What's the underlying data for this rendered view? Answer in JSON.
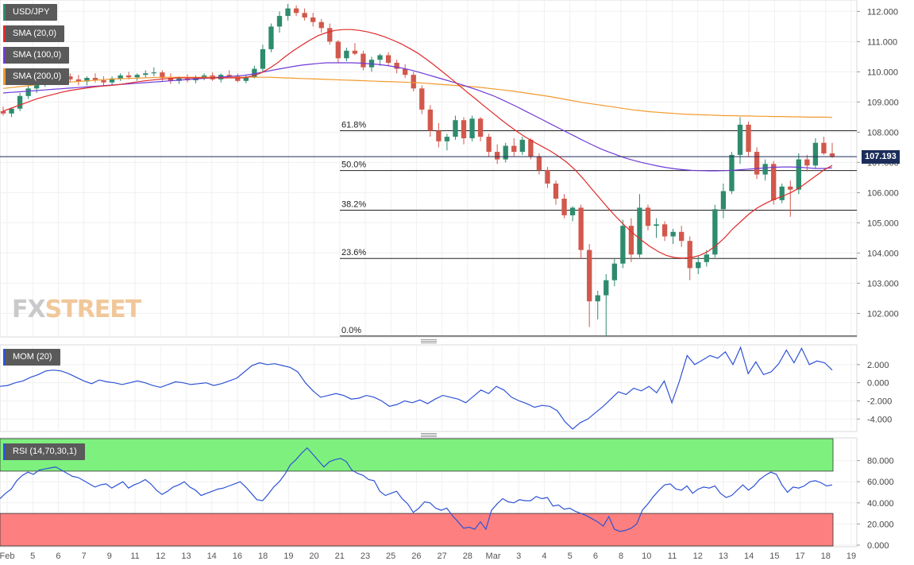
{
  "chart_data": [
    {
      "type": "candlestick",
      "symbol": "USD/JPY",
      "ylim": [
        101.3,
        112.3
      ],
      "y_ticks": [
        "112.000",
        "111.000",
        "110.000",
        "109.000",
        "108.000",
        "107.000",
        "106.000",
        "105.000",
        "104.000",
        "103.000",
        "102.000"
      ],
      "x_labels": [
        "Feb",
        "5",
        "6",
        "7",
        "9",
        "11",
        "12",
        "13",
        "14",
        "16",
        "18",
        "19",
        "20",
        "21",
        "23",
        "25",
        "26",
        "27",
        "28",
        "Mar",
        "3",
        "4",
        "5",
        "6",
        "8",
        "10",
        "11",
        "12",
        "13",
        "14",
        "15",
        "17",
        "18",
        "19"
      ],
      "last_price": "107.193",
      "legend": [
        "USD/JPY",
        "SMA (20,0)",
        "SMA (100,0)",
        "SMA (200,0)"
      ],
      "colors": {
        "up": "#2e8b6e",
        "down": "#d2584c",
        "sma20": "#e02a2a",
        "sma100": "#6f3ad8",
        "sma200": "#f29a2e",
        "price_line": "#1c2d5a"
      },
      "fibonacci": [
        {
          "label": "61.8%",
          "value": 108.05
        },
        {
          "label": "50.0%",
          "value": 106.73
        },
        {
          "label": "38.2%",
          "value": 105.42
        },
        {
          "label": "23.6%",
          "value": 103.82
        },
        {
          "label": "0.0%",
          "value": 101.25
        }
      ],
      "candles": [
        [
          108.7,
          108.85,
          108.55,
          108.62
        ],
        [
          108.62,
          108.8,
          108.5,
          108.78
        ],
        [
          108.78,
          109.3,
          108.7,
          109.2
        ],
        [
          109.2,
          109.6,
          109.1,
          109.45
        ],
        [
          109.45,
          109.8,
          109.3,
          109.65
        ],
        [
          109.65,
          109.95,
          109.5,
          109.8
        ],
        [
          109.8,
          110.05,
          109.7,
          109.92
        ],
        [
          109.92,
          110.05,
          109.75,
          109.85
        ],
        [
          109.85,
          109.95,
          109.65,
          109.75
        ],
        [
          109.75,
          109.9,
          109.55,
          109.68
        ],
        [
          109.68,
          109.85,
          109.55,
          109.8
        ],
        [
          109.8,
          109.95,
          109.65,
          109.72
        ],
        [
          109.72,
          109.85,
          109.55,
          109.65
        ],
        [
          109.65,
          109.85,
          109.55,
          109.78
        ],
        [
          109.78,
          109.95,
          109.7,
          109.88
        ],
        [
          109.88,
          110.0,
          109.75,
          109.82
        ],
        [
          109.82,
          109.95,
          109.7,
          109.9
        ],
        [
          109.9,
          110.05,
          109.8,
          109.95
        ],
        [
          109.95,
          110.15,
          109.85,
          109.98
        ],
        [
          109.98,
          110.05,
          109.7,
          109.8
        ],
        [
          109.8,
          109.95,
          109.6,
          109.7
        ],
        [
          109.7,
          109.85,
          109.6,
          109.78
        ],
        [
          109.78,
          109.92,
          109.65,
          109.72
        ],
        [
          109.72,
          109.88,
          109.62,
          109.8
        ],
        [
          109.8,
          109.95,
          109.72,
          109.88
        ],
        [
          109.88,
          109.98,
          109.7,
          109.75
        ],
        [
          109.75,
          109.95,
          109.65,
          109.9
        ],
        [
          109.9,
          110.05,
          109.8,
          109.85
        ],
        [
          109.85,
          109.95,
          109.65,
          109.7
        ],
        [
          109.7,
          109.9,
          109.62,
          109.82
        ],
        [
          109.82,
          110.2,
          109.78,
          110.1
        ],
        [
          110.1,
          110.9,
          110.0,
          110.75
        ],
        [
          110.75,
          111.6,
          110.65,
          111.5
        ],
        [
          111.5,
          112.0,
          111.3,
          111.85
        ],
        [
          111.85,
          112.25,
          111.7,
          112.1
        ],
        [
          112.1,
          112.2,
          111.85,
          111.95
        ],
        [
          111.95,
          112.1,
          111.7,
          111.8
        ],
        [
          111.8,
          111.95,
          111.5,
          111.65
        ],
        [
          111.65,
          111.75,
          111.3,
          111.45
        ],
        [
          111.45,
          111.6,
          110.9,
          111.0
        ],
        [
          111.0,
          111.05,
          110.3,
          110.45
        ],
        [
          110.45,
          110.8,
          110.35,
          110.7
        ],
        [
          110.7,
          110.95,
          110.55,
          110.6
        ],
        [
          110.6,
          110.7,
          110.05,
          110.15
        ],
        [
          110.15,
          110.5,
          110.0,
          110.4
        ],
        [
          110.4,
          110.6,
          110.2,
          110.55
        ],
        [
          110.55,
          110.65,
          110.2,
          110.3
        ],
        [
          110.3,
          110.4,
          109.95,
          110.1
        ],
        [
          110.1,
          110.25,
          109.8,
          109.9
        ],
        [
          109.9,
          110.0,
          109.35,
          109.45
        ],
        [
          109.45,
          109.55,
          108.6,
          108.75
        ],
        [
          108.75,
          108.9,
          107.85,
          108.05
        ],
        [
          108.05,
          108.3,
          107.5,
          107.7
        ],
        [
          107.7,
          107.95,
          107.4,
          107.85
        ],
        [
          107.85,
          108.55,
          107.75,
          108.4
        ],
        [
          108.4,
          108.5,
          107.6,
          107.8
        ],
        [
          107.8,
          108.55,
          107.7,
          108.45
        ],
        [
          108.45,
          108.5,
          107.7,
          107.85
        ],
        [
          107.85,
          107.95,
          107.2,
          107.35
        ],
        [
          107.35,
          107.6,
          106.95,
          107.1
        ],
        [
          107.1,
          107.65,
          107.0,
          107.55
        ],
        [
          107.55,
          107.8,
          107.2,
          107.35
        ],
        [
          107.35,
          107.85,
          107.25,
          107.75
        ],
        [
          107.75,
          107.8,
          107.1,
          107.2
        ],
        [
          107.2,
          107.3,
          106.6,
          106.75
        ],
        [
          106.75,
          106.85,
          106.15,
          106.3
        ],
        [
          106.3,
          106.4,
          105.6,
          105.8
        ],
        [
          105.8,
          105.95,
          105.15,
          105.25
        ],
        [
          105.25,
          105.55,
          105.05,
          105.5
        ],
        [
          105.5,
          105.6,
          103.8,
          104.1
        ],
        [
          104.1,
          104.3,
          101.55,
          102.4
        ],
        [
          102.4,
          102.75,
          101.8,
          102.6
        ],
        [
          102.6,
          103.3,
          101.25,
          103.1
        ],
        [
          103.1,
          103.8,
          102.9,
          103.65
        ],
        [
          103.65,
          105.1,
          103.5,
          104.9
        ],
        [
          104.9,
          105.15,
          103.7,
          103.95
        ],
        [
          103.95,
          105.95,
          103.85,
          105.5
        ],
        [
          105.5,
          105.6,
          104.75,
          104.9
        ],
        [
          104.9,
          105.15,
          104.5,
          104.95
        ],
        [
          104.95,
          105.05,
          104.4,
          104.55
        ],
        [
          104.55,
          104.8,
          104.3,
          104.7
        ],
        [
          104.7,
          104.9,
          104.2,
          104.4
        ],
        [
          104.4,
          104.55,
          103.1,
          103.5
        ],
        [
          103.5,
          103.9,
          103.3,
          103.7
        ],
        [
          103.7,
          104.1,
          103.55,
          103.95
        ],
        [
          103.95,
          105.6,
          103.85,
          105.45
        ],
        [
          105.45,
          106.3,
          105.15,
          106.05
        ],
        [
          106.05,
          107.35,
          105.95,
          107.25
        ],
        [
          107.25,
          108.5,
          106.95,
          108.25
        ],
        [
          108.25,
          108.35,
          107.2,
          107.35
        ],
        [
          107.35,
          107.5,
          106.45,
          106.6
        ],
        [
          106.6,
          107.1,
          106.4,
          106.95
        ],
        [
          106.95,
          107.05,
          105.6,
          105.75
        ],
        [
          105.75,
          106.3,
          105.65,
          106.2
        ],
        [
          106.2,
          106.4,
          105.2,
          106.1
        ],
        [
          106.1,
          107.3,
          105.95,
          107.1
        ],
        [
          107.1,
          107.25,
          106.7,
          106.9
        ],
        [
          106.9,
          107.8,
          106.8,
          107.65
        ],
        [
          107.65,
          107.85,
          107.25,
          107.3
        ],
        [
          107.3,
          107.65,
          107.15,
          107.19
        ]
      ],
      "sma20": [
        108.7,
        108.8,
        108.9,
        109.0,
        109.1,
        109.18,
        109.25,
        109.32,
        109.38,
        109.42,
        109.46,
        109.5,
        109.53,
        109.55,
        109.58,
        109.62,
        109.66,
        109.7,
        109.73,
        109.76,
        109.78,
        109.8,
        109.8,
        109.8,
        109.8,
        109.8,
        109.8,
        109.8,
        109.8,
        109.8,
        109.86,
        109.95,
        110.1,
        110.28,
        110.5,
        110.7,
        110.88,
        111.05,
        111.2,
        111.3,
        111.37,
        111.4,
        111.4,
        111.37,
        111.32,
        111.25,
        111.16,
        111.05,
        110.93,
        110.78,
        110.62,
        110.43,
        110.22,
        110.0,
        109.78,
        109.55,
        109.32,
        109.1,
        108.87,
        108.65,
        108.43,
        108.22,
        108.02,
        107.84,
        107.68,
        107.53,
        107.38,
        107.2,
        107.0,
        106.75,
        106.45,
        106.12,
        105.8,
        105.48,
        105.18,
        104.9,
        104.65,
        104.42,
        104.22,
        104.05,
        103.92,
        103.85,
        103.83,
        103.85,
        103.92,
        104.05,
        104.25,
        104.5,
        104.8,
        105.05,
        105.3,
        105.5,
        105.65,
        105.78,
        105.88,
        106.0,
        106.15,
        106.35,
        106.55,
        106.75,
        106.9
      ],
      "sma100": [
        109.3,
        109.32,
        109.34,
        109.36,
        109.38,
        109.4,
        109.42,
        109.44,
        109.46,
        109.48,
        109.5,
        109.52,
        109.54,
        109.56,
        109.58,
        109.6,
        109.62,
        109.64,
        109.66,
        109.68,
        109.7,
        109.72,
        109.74,
        109.76,
        109.78,
        109.8,
        109.82,
        109.84,
        109.86,
        109.88,
        109.92,
        109.97,
        110.03,
        110.08,
        110.13,
        110.18,
        110.22,
        110.25,
        110.28,
        110.3,
        110.3,
        110.3,
        110.3,
        110.29,
        110.27,
        110.25,
        110.22,
        110.18,
        110.13,
        110.07,
        110.0,
        109.92,
        109.84,
        109.76,
        109.68,
        109.6,
        109.51,
        109.42,
        109.32,
        109.22,
        109.1,
        108.97,
        108.84,
        108.7,
        108.56,
        108.42,
        108.28,
        108.14,
        108.0,
        107.86,
        107.72,
        107.59,
        107.46,
        107.35,
        107.25,
        107.15,
        107.07,
        107.0,
        106.94,
        106.88,
        106.83,
        106.79,
        106.76,
        106.74,
        106.73,
        106.72,
        106.72,
        106.73,
        106.74,
        106.76,
        106.78,
        106.8,
        106.82,
        106.84,
        106.85,
        106.85,
        106.84,
        106.82,
        106.8,
        106.8,
        106.82
      ],
      "sma200": [
        109.45,
        109.48,
        109.51,
        109.54,
        109.57,
        109.6,
        109.62,
        109.64,
        109.66,
        109.68,
        109.7,
        109.72,
        109.74,
        109.76,
        109.77,
        109.78,
        109.79,
        109.8,
        109.81,
        109.82,
        109.82,
        109.82,
        109.82,
        109.82,
        109.82,
        109.82,
        109.82,
        109.82,
        109.82,
        109.82,
        109.82,
        109.82,
        109.82,
        109.81,
        109.8,
        109.79,
        109.78,
        109.77,
        109.76,
        109.75,
        109.74,
        109.73,
        109.72,
        109.71,
        109.7,
        109.69,
        109.68,
        109.67,
        109.66,
        109.65,
        109.64,
        109.62,
        109.6,
        109.58,
        109.56,
        109.54,
        109.52,
        109.5,
        109.47,
        109.44,
        109.41,
        109.38,
        109.34,
        109.3,
        109.26,
        109.22,
        109.18,
        109.13,
        109.08,
        109.03,
        108.98,
        108.94,
        108.9,
        108.86,
        108.82,
        108.78,
        108.74,
        108.71,
        108.68,
        108.66,
        108.64,
        108.62,
        108.6,
        108.59,
        108.58,
        108.57,
        108.56,
        108.55,
        108.55,
        108.54,
        108.54,
        108.53,
        108.53,
        108.52,
        108.52,
        108.51,
        108.51,
        108.5,
        108.5,
        108.5,
        108.49
      ]
    },
    {
      "type": "line",
      "indicator": "MOM (20)",
      "ylim": [
        -5.2,
        4.0
      ],
      "y_ticks": [
        "2.000",
        "0.000",
        "-2.000",
        "-4.000"
      ],
      "color": "#2e53d6",
      "values": [
        -0.4,
        -0.3,
        0.0,
        0.2,
        0.6,
        0.9,
        1.3,
        1.4,
        1.3,
        1.0,
        0.6,
        0.2,
        -0.1,
        0.3,
        0.1,
        0.0,
        -0.2,
        0.0,
        0.2,
        0.0,
        -0.3,
        -0.5,
        -0.2,
        0.1,
        0.0,
        -0.2,
        -0.1,
        0.0,
        -0.3,
        -0.1,
        0.2,
        0.5,
        1.2,
        1.9,
        2.2,
        2.0,
        2.1,
        1.9,
        1.7,
        1.2,
        0.0,
        -0.9,
        -1.6,
        -1.4,
        -1.2,
        -1.4,
        -1.8,
        -1.7,
        -1.4,
        -1.6,
        -2.0,
        -2.6,
        -2.4,
        -2.0,
        -2.2,
        -1.9,
        -2.3,
        -1.8,
        -1.4,
        -1.6,
        -1.8,
        -2.2,
        -1.5,
        -0.8,
        -1.2,
        -0.4,
        -0.8,
        -1.6,
        -2.0,
        -2.3,
        -2.7,
        -2.5,
        -2.6,
        -3.1,
        -4.3,
        -5.1,
        -4.4,
        -4.0,
        -3.3,
        -2.6,
        -1.8,
        -1.0,
        -1.3,
        -0.6,
        -0.9,
        -0.4,
        -1.1,
        0.2,
        -2.2,
        0.2,
        3.0,
        2.0,
        2.5,
        3.0,
        2.7,
        3.4,
        2.0,
        3.9,
        1.0,
        2.3,
        0.9,
        1.2,
        2.1,
        3.6,
        2.2,
        3.8,
        2.0,
        2.4,
        2.2,
        1.4
      ]
    },
    {
      "type": "line",
      "indicator": "RSI (14,70,30,1)",
      "ylim": [
        0,
        100
      ],
      "y_ticks": [
        "80.000",
        "60.000",
        "40.000",
        "20.000",
        "0.000"
      ],
      "overbought": 70,
      "oversold": 30,
      "colors": {
        "line": "#2e53d6",
        "overbought_zone": "#7ef07e",
        "oversold_zone": "#fd7f7f"
      },
      "values": [
        44,
        49,
        53,
        61,
        66,
        69,
        67,
        71,
        72,
        73,
        74,
        71,
        68,
        65,
        64,
        61,
        58,
        55,
        57,
        58,
        54,
        57,
        60,
        54,
        57,
        59,
        62,
        58,
        52,
        48,
        51,
        55,
        57,
        60,
        55,
        52,
        47,
        49,
        51,
        53,
        54,
        56,
        58,
        60,
        55,
        49,
        43,
        42,
        48,
        55,
        60,
        67,
        76,
        81,
        87,
        92,
        86,
        80,
        74,
        79,
        81,
        82,
        79,
        71,
        68,
        66,
        62,
        61,
        51,
        47,
        49,
        51,
        44,
        39,
        31,
        35,
        41,
        40,
        35,
        33,
        35,
        28,
        22,
        16,
        17,
        15,
        22,
        15,
        33,
        39,
        44,
        41,
        40,
        43,
        42,
        42,
        46,
        44,
        45,
        37,
        38,
        34,
        35,
        32,
        30,
        28,
        25,
        22,
        18,
        27,
        15,
        13,
        14,
        16,
        20,
        33,
        39,
        46,
        52,
        57,
        58,
        53,
        52,
        56,
        49,
        53,
        55,
        54,
        56,
        49,
        45,
        47,
        52,
        57,
        52,
        56,
        62,
        66,
        69,
        67,
        57,
        50,
        55,
        54,
        56,
        60,
        61,
        59,
        56,
        57
      ]
    }
  ]
}
